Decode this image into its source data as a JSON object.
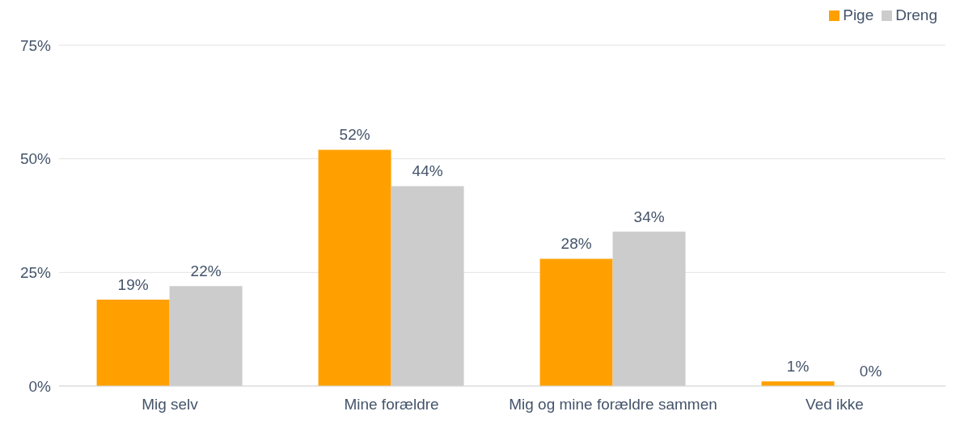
{
  "chart_data": {
    "type": "bar",
    "categories": [
      "Mig selv",
      "Mine forældre",
      "Mig og mine forældre sammen",
      "Ved ikke"
    ],
    "series": [
      {
        "name": "Pige",
        "color": "#ffa000",
        "values": [
          19,
          52,
          28,
          1
        ],
        "value_labels": [
          "19%",
          "52%",
          "28%",
          "1%"
        ]
      },
      {
        "name": "Dreng",
        "color": "#cccccc",
        "values": [
          22,
          44,
          34,
          0
        ],
        "value_labels": [
          "22%",
          "44%",
          "34%",
          "0%"
        ]
      }
    ],
    "ylim": [
      0,
      75
    ],
    "yticks": [
      {
        "value": 0,
        "label": "0%"
      },
      {
        "value": 25,
        "label": "25%"
      },
      {
        "value": 50,
        "label": "50%"
      },
      {
        "value": 75,
        "label": "75%"
      }
    ],
    "grid": "y",
    "legend": "top right"
  }
}
